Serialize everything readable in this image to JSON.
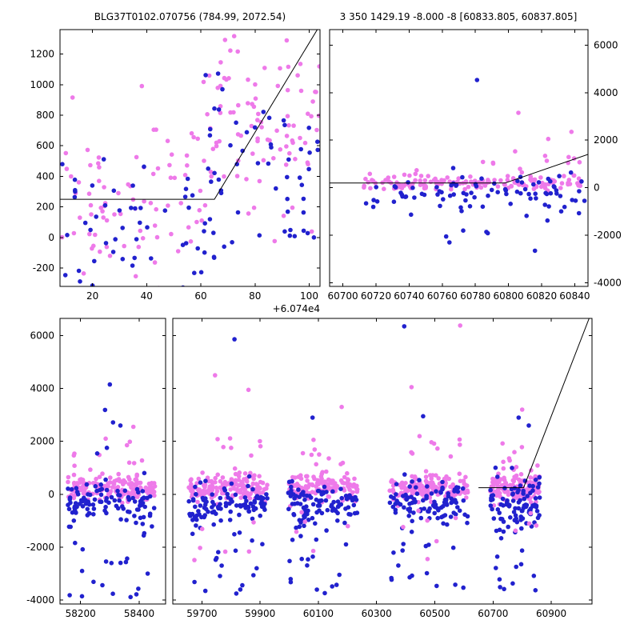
{
  "titles": {
    "left": "BLG37T0102.070756 (784.99, 2072.54)",
    "right": "3 350 1429.19 -8.000 -8 [60833.805, 60837.805]"
  },
  "colors": {
    "magenta": "#EE7AE9",
    "blue": "#2121CE",
    "line": "#000000",
    "axis": "#000000"
  },
  "marker_radius": 2.8,
  "chart_data": [
    {
      "id": "top-left",
      "type": "scatter",
      "px": {
        "x0": 75,
        "y0": 37,
        "x1": 400,
        "y1": 358
      },
      "xlim": [
        8,
        104
      ],
      "ylim": [
        -320,
        1360
      ],
      "xticks": [
        20,
        40,
        60,
        80,
        100
      ],
      "yticks": [
        -200,
        0,
        200,
        400,
        600,
        800,
        1000,
        1200
      ],
      "ylabel_side": "left",
      "x_offset_label": "+6.074e4",
      "line": [
        [
          8,
          250
        ],
        [
          65,
          250
        ],
        [
          103,
          1360
        ]
      ],
      "clusters": [
        {
          "color": "magenta",
          "n": 140,
          "x": [
            8,
            104
          ],
          "ymean": 120,
          "yslope": 5.5,
          "ysd": 300
        },
        {
          "color": "magenta",
          "n": 34,
          "x": [
            62,
            104
          ],
          "yuniform": [
            500,
            1340
          ]
        },
        {
          "color": "blue",
          "n": 95,
          "x": [
            8,
            104
          ],
          "ymean": -60,
          "yslope": 4.0,
          "ysd": 280
        },
        {
          "color": "blue",
          "n": 18,
          "x": [
            55,
            104
          ],
          "yuniform": [
            250,
            1150
          ]
        }
      ],
      "outliers": []
    },
    {
      "id": "top-right",
      "type": "scatter",
      "px": {
        "x0": 412,
        "y0": 37,
        "x1": 735,
        "y1": 358
      },
      "xlim": [
        60692,
        60848
      ],
      "ylim": [
        -4150,
        6650
      ],
      "xticks": [
        60700,
        60720,
        60740,
        60760,
        60780,
        60800,
        60820,
        60840
      ],
      "yticks": [
        -4000,
        -2000,
        0,
        2000,
        4000,
        6000
      ],
      "ylabel_side": "right",
      "line": [
        [
          60692,
          200
        ],
        [
          60798,
          200
        ],
        [
          60848,
          1400
        ]
      ],
      "clusters": [
        {
          "color": "magenta",
          "n": 150,
          "x": [
            60712,
            60846
          ],
          "ymean": 200,
          "ysd": 150
        },
        {
          "color": "magenta",
          "n": 12,
          "x": [
            60780,
            60846
          ],
          "yuniform": [
            550,
            1800
          ]
        },
        {
          "color": "blue",
          "n": 85,
          "x": [
            60712,
            60846
          ],
          "ymean": -200,
          "ysd": 350
        },
        {
          "color": "blue",
          "n": 10,
          "x": [
            60740,
            60832
          ],
          "yuniform": [
            -2350,
            -700
          ]
        }
      ],
      "outliers": [
        {
          "color": "blue",
          "x": 60781,
          "y": 4530
        },
        {
          "color": "magenta",
          "x": 60806,
          "y": 3150
        },
        {
          "color": "magenta",
          "x": 60824,
          "y": 2050
        },
        {
          "color": "magenta",
          "x": 60838,
          "y": 2350
        },
        {
          "color": "blue",
          "x": 60816,
          "y": -2650
        }
      ]
    },
    {
      "id": "bottom-left",
      "type": "scatter",
      "px": {
        "x0": 75,
        "y0": 398,
        "x1": 207,
        "y1": 755
      },
      "xlim": [
        58130,
        58490
      ],
      "ylim": [
        -4150,
        6650
      ],
      "xticks": [
        58200,
        58400
      ],
      "yticks": [
        -4000,
        -2000,
        0,
        2000,
        4000,
        6000
      ],
      "ylabel_side": "left",
      "clusters": [
        {
          "color": "magenta",
          "n": 150,
          "x": [
            58150,
            58455
          ],
          "ymean": 230,
          "ysd": 230
        },
        {
          "color": "magenta",
          "n": 12,
          "x": [
            58160,
            58450
          ],
          "yuniform": [
            600,
            2300
          ]
        },
        {
          "color": "blue",
          "n": 100,
          "x": [
            58150,
            58455
          ],
          "ymean": -260,
          "ysd": 400
        },
        {
          "color": "blue",
          "n": 22,
          "x": [
            58160,
            58450
          ],
          "yuniform": [
            -3900,
            -800
          ]
        },
        {
          "color": "blue",
          "n": 5,
          "x": [
            58180,
            58440
          ],
          "yuniform": [
            1500,
            3200
          ]
        }
      ],
      "outliers": [
        {
          "color": "blue",
          "x": 58300,
          "y": 4150
        },
        {
          "color": "magenta",
          "x": 58380,
          "y": 2550
        }
      ]
    },
    {
      "id": "bottom-right",
      "type": "scatter",
      "px": {
        "x0": 216,
        "y0": 398,
        "x1": 740,
        "y1": 755
      },
      "xlim": [
        59600,
        61040
      ],
      "ylim": [
        -4150,
        6650
      ],
      "xticks": [
        59700,
        59900,
        60100,
        60300,
        60500,
        60700,
        60900
      ],
      "yticks": [
        -4000,
        -2000,
        0,
        2000,
        4000,
        6000
      ],
      "ylabel_side": "none",
      "line": [
        [
          60650,
          250
        ],
        [
          60805,
          250
        ],
        [
          61030,
          6650
        ]
      ],
      "clusters": [
        {
          "color": "magenta",
          "n": 150,
          "x": [
            59655,
            59925
          ],
          "ymean": 230,
          "ysd": 230
        },
        {
          "color": "magenta",
          "n": 12,
          "x": [
            59660,
            59920
          ],
          "yuniform": [
            600,
            2300
          ]
        },
        {
          "color": "blue",
          "n": 100,
          "x": [
            59655,
            59925
          ],
          "ymean": -300,
          "ysd": 420
        },
        {
          "color": "blue",
          "n": 20,
          "x": [
            59660,
            59920
          ],
          "yuniform": [
            -3950,
            -800
          ]
        },
        {
          "color": "magenta",
          "n": 6,
          "x": [
            59660,
            59920
          ],
          "yuniform": [
            -2500,
            -600
          ]
        },
        {
          "color": "magenta",
          "n": 140,
          "x": [
            59995,
            60235
          ],
          "ymean": 230,
          "ysd": 230
        },
        {
          "color": "magenta",
          "n": 10,
          "x": [
            60000,
            60230
          ],
          "yuniform": [
            600,
            2300
          ]
        },
        {
          "color": "blue",
          "n": 95,
          "x": [
            59995,
            60235
          ],
          "ymean": -300,
          "ysd": 420
        },
        {
          "color": "blue",
          "n": 18,
          "x": [
            60000,
            60230
          ],
          "yuniform": [
            -3950,
            -800
          ]
        },
        {
          "color": "magenta",
          "n": 5,
          "x": [
            60000,
            60230
          ],
          "yuniform": [
            -2500,
            -600
          ]
        },
        {
          "color": "magenta",
          "n": 150,
          "x": [
            60345,
            60615
          ],
          "ymean": 230,
          "ysd": 230
        },
        {
          "color": "magenta",
          "n": 12,
          "x": [
            60350,
            60610
          ],
          "yuniform": [
            600,
            2300
          ]
        },
        {
          "color": "blue",
          "n": 100,
          "x": [
            60345,
            60615
          ],
          "ymean": -300,
          "ysd": 420
        },
        {
          "color": "blue",
          "n": 20,
          "x": [
            60350,
            60610
          ],
          "yuniform": [
            -3950,
            -800
          ]
        },
        {
          "color": "magenta",
          "n": 6,
          "x": [
            60350,
            60610
          ],
          "yuniform": [
            -2500,
            -600
          ]
        },
        {
          "color": "magenta",
          "n": 130,
          "x": [
            60690,
            60862
          ],
          "ymean": 260,
          "ysd": 260
        },
        {
          "color": "magenta",
          "n": 10,
          "x": [
            60695,
            60860
          ],
          "yuniform": [
            600,
            2000
          ]
        },
        {
          "color": "blue",
          "n": 90,
          "x": [
            60690,
            60862
          ],
          "ymean": -350,
          "ysd": 500
        },
        {
          "color": "blue",
          "n": 16,
          "x": [
            60695,
            60860
          ],
          "yuniform": [
            -3800,
            -800
          ]
        },
        {
          "color": "magenta",
          "n": 4,
          "x": [
            60695,
            60860
          ],
          "yuniform": [
            -2400,
            -600
          ]
        }
      ],
      "outliers": [
        {
          "color": "blue",
          "x": 59812,
          "y": 5860
        },
        {
          "color": "magenta",
          "x": 59745,
          "y": 4500
        },
        {
          "color": "magenta",
          "x": 59860,
          "y": 3950
        },
        {
          "color": "blue",
          "x": 60080,
          "y": 2900
        },
        {
          "color": "magenta",
          "x": 60180,
          "y": 3300
        },
        {
          "color": "blue",
          "x": 60395,
          "y": 6350
        },
        {
          "color": "magenta",
          "x": 60587,
          "y": 6380
        },
        {
          "color": "blue",
          "x": 60460,
          "y": 2950
        },
        {
          "color": "magenta",
          "x": 60420,
          "y": 4050
        },
        {
          "color": "magenta",
          "x": 60800,
          "y": 3200
        },
        {
          "color": "blue",
          "x": 60788,
          "y": 2900
        },
        {
          "color": "blue",
          "x": 60823,
          "y": 2600
        }
      ]
    }
  ]
}
